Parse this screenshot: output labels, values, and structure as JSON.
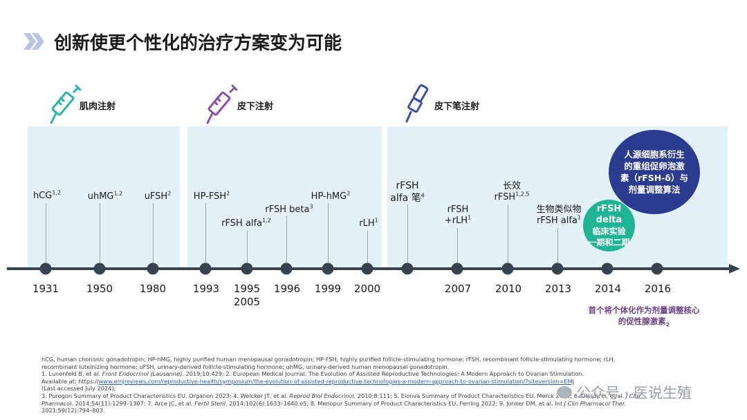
{
  "title": "创新使更个性化的治疗方案变为可能",
  "sections": [
    {
      "label": "肌肉注射",
      "icon": "syringe-icon",
      "color": "#2bb3a6"
    },
    {
      "label": "皮下注射",
      "icon": "syringe-icon",
      "color": "#8b4fa8"
    },
    {
      "label": "皮下笔注射",
      "icon": "injection-pen-icon",
      "color": "#3a4fa3"
    }
  ],
  "timeline_labels": [
    {
      "text": "hCG",
      "sup": "1,2"
    },
    {
      "text": "uhMG",
      "sup": "1,2"
    },
    {
      "text": "uFSH",
      "sup": "2"
    },
    {
      "text": "HP-FSH",
      "sup": "2"
    },
    {
      "text": "rFSH alfa",
      "sup": "1,2"
    },
    {
      "text": "rFSH beta",
      "sup": "3"
    },
    {
      "text": "HP-hMG",
      "sup": "2"
    },
    {
      "text": "rLH",
      "sup": "1"
    },
    {
      "line1": "rFSH",
      "line2": "alfa 笔",
      "sup": "4"
    },
    {
      "line1": "rFSH",
      "line2": "+rLH",
      "sup": "1"
    },
    {
      "line1": "长效",
      "line2": "rFSH",
      "sup": "1,2,5"
    },
    {
      "line1": "生物类似物",
      "line2": "rFSH alfa",
      "sup": "1"
    }
  ],
  "years": [
    "1931",
    "1950",
    "1980",
    "1993",
    "1995",
    "2005",
    "1996",
    "1999",
    "2000",
    "2007",
    "2010",
    "2013",
    "2014",
    "2016"
  ],
  "highlight_green": {
    "line1": "rFSH delta",
    "line2": "临床实验",
    "line3": "一期和二期"
  },
  "highlight_blue": {
    "line1": "人源细胞系衍生",
    "line2": "的重组促卵泡激",
    "line3": "素（rFSH-δ）与",
    "line4": "剂量调整算法"
  },
  "note": {
    "line1": "首个将个体化作为剂量调整核心",
    "line2": "的促性腺激素",
    "sup": "2"
  },
  "footnotes": {
    "l1": "hCG, human chorionic gonadotropin; HP-hMG, highly purified human menopausal gonadotropin; HP-FSH, highly purified follicle-stimulating hormone; rFSH, recombinant follicle-stimulating hormone; rLH,",
    "l2": "recombinant luteinizing  hormone; uFSH, urinary-derived follicle-stimulating hormone; uhMG, urinary-derived human menopausal gonadotropin.",
    "l3a": "1. Lunenfeld B, et al. ",
    "l3b": "Front Endocrinol (Lausanne).",
    "l3c": " 2019;10:429; 2. European Medical Journal. The Evolution of Assisted Reproductive Technologies: A Modern Approach to Ovarian Stimulation.",
    "l4a": "Available at:  https://",
    "l4link": "www.emjreviews.com/reproductive-health/symposium/the-evolution-of-assisted-reproductive-technologies-a-modern-approach-to-ovarian-stimulation/?siteversion=EMJ",
    "l5": "(Last accessed July 2024);",
    "l6a": "3. Puregon Summary of Product Characteristics EU. Organon 2023; 4. Welcker JT, et al. ",
    "l6b": "Reprod Biol Endocrinol.",
    "l6c": " 2010;8:111; 5. Elonva Summary of Product Characteristics EU. Merck 2023; 6. Olsson H, et al. ",
    "l6d": "J Clin",
    "l7a": "Pharmacol.",
    "l7b": "  2014;54(11):1299–1307; 7. Arce JC, et al. ",
    "l7c": "Fertil Steril.",
    "l7d": " 2014;102(6):1633–1640.e5; 8. Menopur Summary of Product Characteristics EU. Ferring 2022; 9. Jonker DM, et al. ",
    "l7e": "Int J Clin Pharmacol Ther.",
    "l8": "2021;59(12):794–803."
  },
  "watermark": "公众号 · 医说生殖",
  "colors": {
    "panel": "#e3f1f8",
    "axis": "#364452",
    "green": "#1fb493",
    "blue": "#2b3b8f",
    "purple_note": "#6a3f86"
  }
}
